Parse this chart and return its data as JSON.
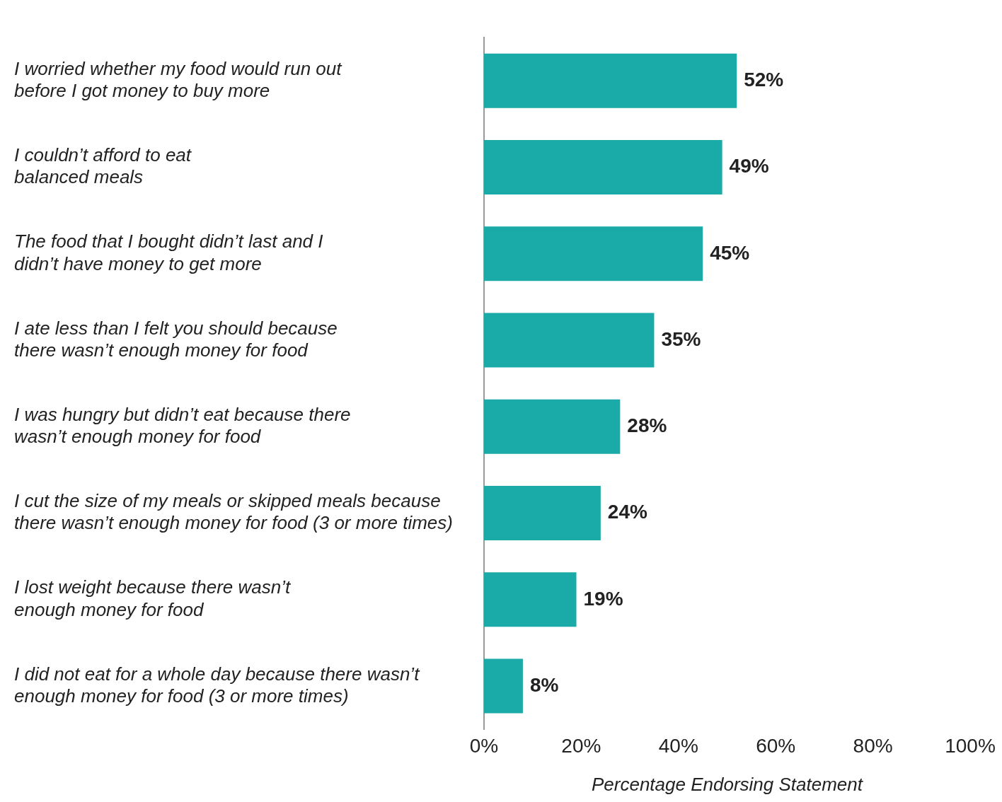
{
  "chart_data": {
    "type": "bar",
    "orientation": "horizontal",
    "xlabel": "Percentage Endorsing Statement",
    "categories": [
      "I worried whether my food would run out before I got money to buy more",
      "I couldn’t afford to eat balanced meals",
      "The food that I bought didn’t last and I didn’t have money to get more",
      "I ate less than I felt you should because there wasn’t enough money for food",
      "I was hungry but didn’t eat because there wasn’t enough money for food",
      "I cut the size of my meals or skipped meals because there wasn’t enough money for food (3 or more times)",
      "I lost weight because there wasn’t enough money for food",
      "I did not eat for a whole day because there wasn’t enough money for food (3 or more times)"
    ],
    "values": [
      52,
      49,
      45,
      35,
      28,
      24,
      19,
      8
    ],
    "value_labels": [
      "52%",
      "49%",
      "45%",
      "35%",
      "28%",
      "24%",
      "19%",
      "8%"
    ],
    "color": "#1aaaa7",
    "xlim": [
      0,
      100
    ],
    "xticks": [
      {
        "value": 0,
        "label": "0%"
      },
      {
        "value": 20,
        "label": "20%"
      },
      {
        "value": 40,
        "label": "40%"
      },
      {
        "value": 60,
        "label": "60%"
      },
      {
        "value": 80,
        "label": "80%"
      },
      {
        "value": 100,
        "label": "100%"
      }
    ],
    "grid": false,
    "legend": false
  }
}
